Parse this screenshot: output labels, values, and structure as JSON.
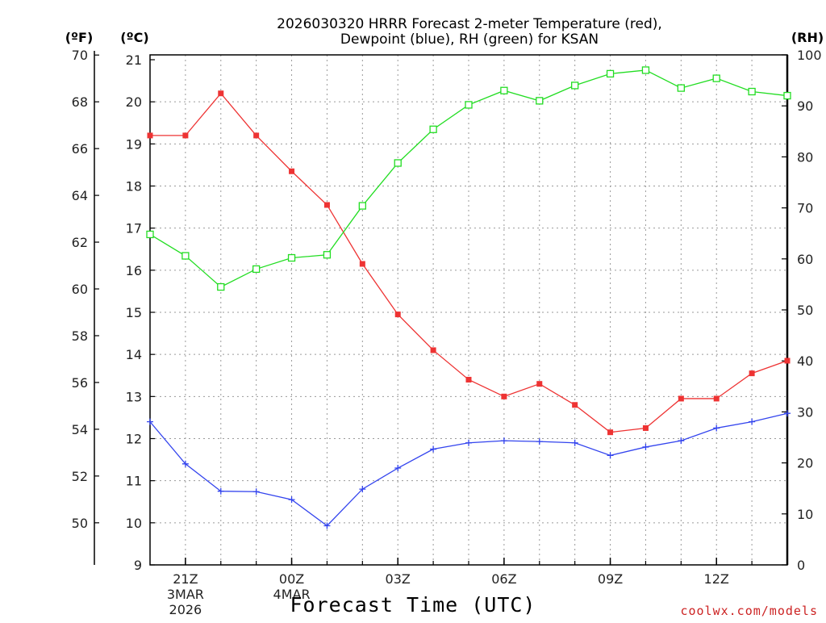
{
  "chart_data": {
    "type": "line",
    "title_line1": "2026030320 HRRR Forecast 2-meter Temperature (red),",
    "title_line2": "Dewpoint (blue), RH (green) for KSAN",
    "xlabel": "Forecast Time (UTC)",
    "credit": "coolwx.com/models",
    "units": {
      "fahrenheit": "(ºF)",
      "celsius": "(ºC)",
      "rh": "(RH)"
    },
    "x_range": [
      -1,
      17
    ],
    "x_ticks": [
      {
        "h": 0,
        "label": "21Z",
        "date1": "3MAR",
        "date2": "2026"
      },
      {
        "h": 3,
        "label": "00Z",
        "date1": "4MAR",
        "date2": ""
      },
      {
        "h": 6,
        "label": "03Z",
        "date1": "",
        "date2": ""
      },
      {
        "h": 9,
        "label": "06Z",
        "date1": "",
        "date2": ""
      },
      {
        "h": 12,
        "label": "09Z",
        "date1": "",
        "date2": ""
      },
      {
        "h": 15,
        "label": "12Z",
        "date1": "",
        "date2": ""
      }
    ],
    "celsius_axis": {
      "range": [
        9,
        21
      ],
      "ticks": [
        "9",
        "10",
        "11",
        "12",
        "13",
        "14",
        "15",
        "16",
        "17",
        "18",
        "19",
        "20",
        "21"
      ]
    },
    "fahrenheit_axis": {
      "ticks": [
        "50",
        "52",
        "54",
        "56",
        "58",
        "60",
        "62",
        "64",
        "66",
        "68",
        "70"
      ]
    },
    "rh_axis": {
      "range": [
        0,
        100
      ],
      "ticks": [
        "0",
        "10",
        "20",
        "30",
        "40",
        "50",
        "60",
        "70",
        "80",
        "90",
        "100"
      ]
    },
    "series": [
      {
        "name": "Temperature",
        "color": "#ee3333",
        "marker": "filled-square",
        "axis": "celsius",
        "hours": [
          -1,
          0,
          1,
          2,
          3,
          4,
          5,
          6,
          7,
          8,
          9,
          10,
          11,
          12,
          13,
          14,
          15,
          16,
          17
        ],
        "values": [
          19.2,
          19.2,
          20.2,
          19.2,
          18.35,
          17.55,
          16.15,
          14.95,
          14.1,
          13.4,
          13.0,
          13.3,
          12.8,
          12.15,
          12.25,
          12.95,
          12.95,
          13.55,
          13.85
        ]
      },
      {
        "name": "Dewpoint",
        "color": "#3344ee",
        "marker": "plus",
        "axis": "celsius",
        "hours": [
          -1,
          0,
          1,
          2,
          3,
          4,
          5,
          6,
          7,
          8,
          9,
          10,
          11,
          12,
          13,
          14,
          15,
          16,
          17
        ],
        "values": [
          12.4,
          11.4,
          10.75,
          10.74,
          10.55,
          9.93,
          10.8,
          11.3,
          11.75,
          11.9,
          11.95,
          11.93,
          11.9,
          11.6,
          11.8,
          11.95,
          12.25,
          12.4,
          12.6
        ]
      },
      {
        "name": "RH",
        "color": "#22dd22",
        "marker": "open-square",
        "axis": "rh",
        "hours": [
          -1,
          0,
          1,
          2,
          3,
          4,
          5,
          6,
          7,
          8,
          9,
          10,
          11,
          12,
          13,
          14,
          15,
          16,
          17
        ],
        "values": [
          64.8,
          60.6,
          54.5,
          58.0,
          60.2,
          60.8,
          70.4,
          78.8,
          85.4,
          90.2,
          93.0,
          91.0,
          94.0,
          96.3,
          97.0,
          93.5,
          95.4,
          92.8,
          92.0
        ]
      }
    ]
  }
}
